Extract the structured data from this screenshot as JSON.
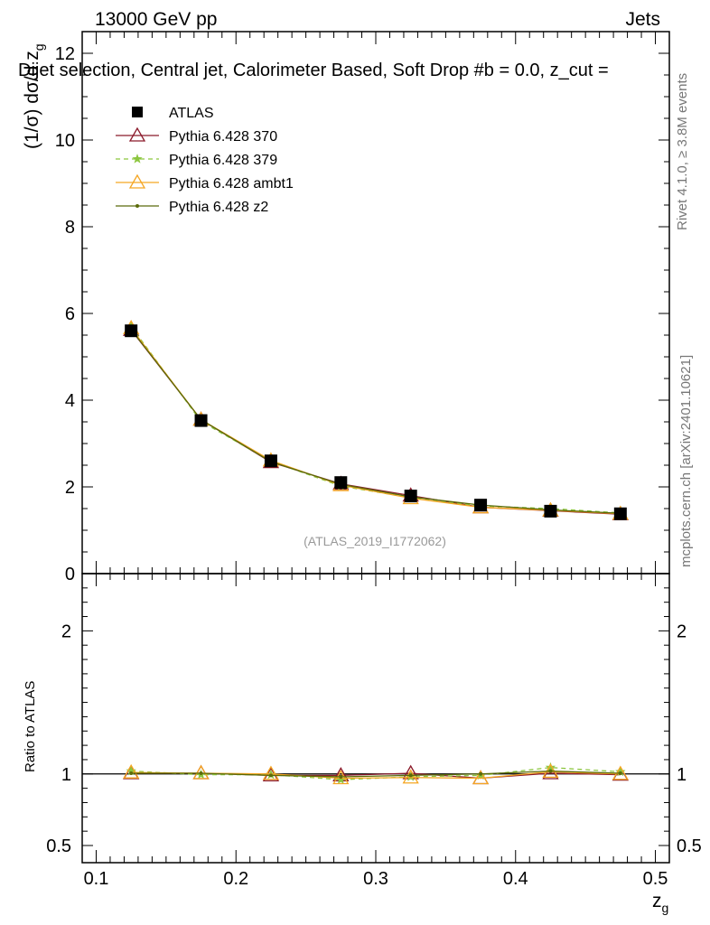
{
  "header": {
    "left": "13000 GeV pp",
    "right": "Jets"
  },
  "side_texts": {
    "rivet": "Rivet 4.1.0, ≥ 3.8M events",
    "mcplots": "mcplots.cern.ch [arXiv:2401.10621]"
  },
  "chart_data": {
    "type": "line",
    "title": "Dijet selection, Central jet, Calorimeter Based, Soft Drop #b = 0.0, z_cut =",
    "watermark": "(ATLAS_2019_I1772062)",
    "xlabel": "z_g",
    "ylabel_main": "(1/σ) dσ/d z_g",
    "ylabel_ratio": "Ratio to ATLAS",
    "xlim": [
      0.09,
      0.51
    ],
    "ylim_main": [
      0,
      12.5
    ],
    "ylim_ratio": [
      0.38,
      2.4
    ],
    "x_ticks": [
      "0.1",
      "0.2",
      "0.3",
      "0.4",
      "0.5"
    ],
    "y_ticks_main": [
      "0",
      "2",
      "4",
      "6",
      "8",
      "10",
      "12"
    ],
    "y_ticks_ratio": [
      "0.5",
      "1",
      "2"
    ],
    "x": [
      0.125,
      0.175,
      0.225,
      0.275,
      0.325,
      0.375,
      0.425,
      0.475
    ],
    "series": [
      {
        "name": "ATLAS",
        "color": "#000000",
        "marker": "square",
        "values": [
          5.6,
          3.53,
          2.6,
          2.1,
          1.79,
          1.58,
          1.44,
          1.38
        ]
      },
      {
        "name": "Pythia 6.428 370",
        "color": "#8b1a2b",
        "marker": "triangle-open",
        "values": [
          5.62,
          3.55,
          2.57,
          2.07,
          1.8,
          1.53,
          1.45,
          1.37
        ]
      },
      {
        "name": "Pythia 6.428 379",
        "color": "#8cc63f",
        "marker": "star",
        "dashed": true,
        "values": [
          5.7,
          3.51,
          2.59,
          2.02,
          1.75,
          1.56,
          1.5,
          1.4
        ]
      },
      {
        "name": "Pythia 6.428 ambt1",
        "color": "#f5a623",
        "marker": "triangle-open",
        "values": [
          5.66,
          3.55,
          2.61,
          2.04,
          1.74,
          1.53,
          1.46,
          1.38
        ]
      },
      {
        "name": "Pythia 6.428 z2",
        "color": "#5b6b0a",
        "marker": "dot",
        "values": [
          5.63,
          3.55,
          2.58,
          2.06,
          1.77,
          1.58,
          1.47,
          1.39
        ]
      }
    ],
    "ratios": [
      {
        "name": "Pythia 6.428 370",
        "values": [
          1.005,
          1.005,
          0.99,
          0.99,
          1.005,
          0.97,
          1.005,
          0.995
        ]
      },
      {
        "name": "Pythia 6.428 379",
        "values": [
          1.02,
          0.995,
          0.995,
          0.96,
          0.98,
          0.99,
          1.045,
          1.015
        ]
      },
      {
        "name": "Pythia 6.428 ambt1",
        "values": [
          1.01,
          1.005,
          1.0,
          0.97,
          0.975,
          0.97,
          1.015,
          1.0
        ]
      },
      {
        "name": "Pythia 6.428 z2",
        "values": [
          1.005,
          1.005,
          0.99,
          0.98,
          0.99,
          1.0,
          1.02,
          1.005
        ]
      }
    ]
  }
}
